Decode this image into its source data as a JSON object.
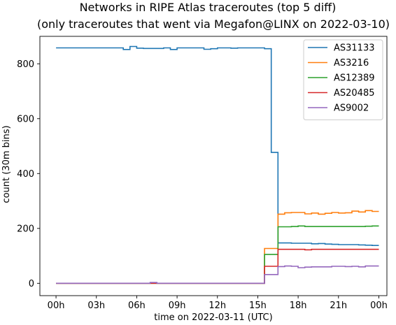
{
  "chart_data": {
    "type": "line",
    "step": true,
    "title": "Networks in RIPE Atlas traceroutes (top 5 diff)",
    "subtitle": "(only traceroutes that went via Megafon@LINX on 2022-03-10)",
    "xlabel": "time on 2022-03-11 (UTC)",
    "ylabel": "count (30m bins)",
    "xlim": [
      -1.2,
      24.6
    ],
    "ylim": [
      -45,
      900
    ],
    "x_ticks": [
      0,
      3,
      6,
      9,
      12,
      15,
      18,
      21,
      24
    ],
    "x_tick_labels": [
      "00h",
      "03h",
      "06h",
      "09h",
      "12h",
      "15h",
      "18h",
      "21h",
      "00h"
    ],
    "y_ticks": [
      0,
      200,
      400,
      600,
      800
    ],
    "y_tick_labels": [
      "0",
      "200",
      "400",
      "600",
      "800"
    ],
    "legend_position": "top-right",
    "grid": false,
    "x": [
      0,
      0.5,
      1,
      1.5,
      2,
      2.5,
      3,
      3.5,
      4,
      4.5,
      5,
      5.5,
      6,
      6.5,
      7,
      7.5,
      8,
      8.5,
      9,
      9.5,
      10,
      10.5,
      11,
      11.5,
      12,
      12.5,
      13,
      13.5,
      14,
      14.5,
      15,
      15.5,
      16,
      16.5,
      17,
      17.5,
      18,
      18.5,
      19,
      19.5,
      20,
      20.5,
      21,
      21.5,
      22,
      22.5,
      23,
      23.5
    ],
    "series": [
      {
        "name": "AS31133",
        "color": "#1f77b4",
        "values": [
          858,
          858,
          858,
          858,
          858,
          858,
          858,
          858,
          858,
          858,
          852,
          863,
          857,
          856,
          856,
          856,
          858,
          852,
          858,
          858,
          858,
          858,
          853,
          855,
          858,
          858,
          857,
          858,
          858,
          858,
          858,
          855,
          477,
          147,
          147,
          146,
          146,
          146,
          144,
          145,
          143,
          142,
          141,
          141,
          141,
          140,
          139,
          138
        ]
      },
      {
        "name": "AS3216",
        "color": "#ff7f0e",
        "values": [
          0,
          0,
          0,
          0,
          0,
          0,
          0,
          0,
          0,
          0,
          0,
          0,
          0,
          0,
          0,
          0,
          0,
          0,
          0,
          0,
          0,
          0,
          0,
          0,
          0,
          0,
          0,
          0,
          0,
          0,
          0,
          127,
          127,
          252,
          257,
          258,
          258,
          253,
          256,
          252,
          255,
          258,
          256,
          257,
          263,
          260,
          265,
          262
        ]
      },
      {
        "name": "AS12389",
        "color": "#2ca02c",
        "values": [
          0,
          0,
          0,
          0,
          0,
          0,
          0,
          0,
          0,
          0,
          0,
          0,
          0,
          0,
          0,
          0,
          0,
          0,
          0,
          0,
          0,
          0,
          0,
          0,
          0,
          0,
          0,
          0,
          0,
          0,
          0,
          105,
          105,
          206,
          206,
          207,
          209,
          207,
          207,
          207,
          207,
          207,
          207,
          207,
          207,
          207,
          208,
          209
        ]
      },
      {
        "name": "AS20485",
        "color": "#d62728",
        "values": [
          0,
          0,
          0,
          0,
          0,
          0,
          0,
          0,
          0,
          0,
          0,
          0,
          0,
          0,
          0,
          0,
          0,
          0,
          0,
          0,
          0,
          0,
          0,
          0,
          0,
          0,
          0,
          0,
          0,
          0,
          0,
          62,
          62,
          124,
          124,
          124,
          124,
          122,
          124,
          124,
          124,
          124,
          124,
          124,
          124,
          124,
          124,
          124
        ]
      },
      {
        "name": "AS9002",
        "color": "#9467bd",
        "values": [
          0,
          0,
          0,
          0,
          0,
          0,
          0,
          0,
          0,
          0,
          0,
          0,
          0,
          0,
          3,
          0,
          0,
          0,
          0,
          0,
          0,
          0,
          0,
          0,
          0,
          0,
          0,
          0,
          0,
          0,
          0,
          32,
          32,
          61,
          63,
          62,
          57,
          59,
          60,
          60,
          60,
          62,
          62,
          61,
          62,
          60,
          63,
          63
        ]
      }
    ]
  }
}
